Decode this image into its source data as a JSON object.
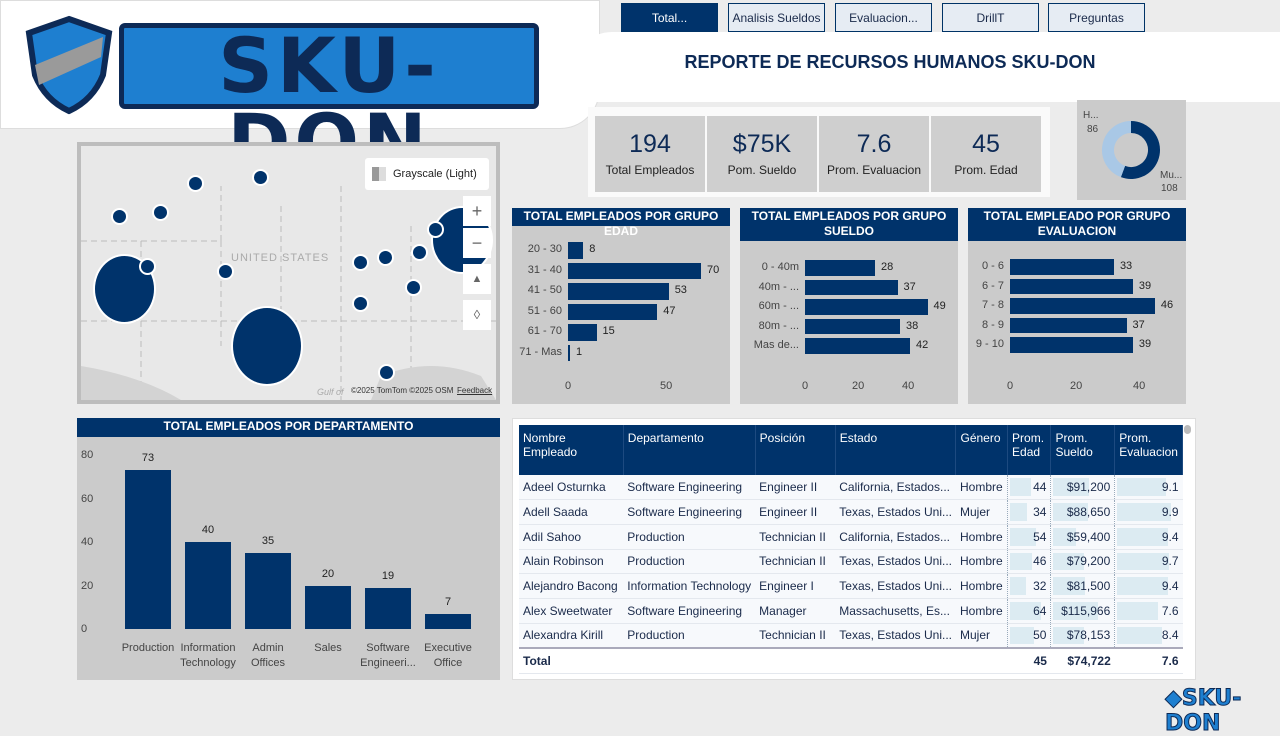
{
  "brand": {
    "logo_text": "SKU-DON",
    "colors": {
      "navy": "#00336b",
      "light": "#a9c8e6",
      "panel": "#cbcbcb"
    }
  },
  "tabs": [
    {
      "label": "Total...",
      "active": true
    },
    {
      "label": "Analisis Sueldos"
    },
    {
      "label": "Evaluacion..."
    },
    {
      "label": "DrillT"
    },
    {
      "label": "Preguntas"
    }
  ],
  "title": "REPORTE DE RECURSOS HUMANOS SKU-DON",
  "kpis": [
    {
      "value": "194",
      "label": "Total Empleados"
    },
    {
      "value": "$75K",
      "label": "Pom. Sueldo"
    },
    {
      "value": "7.6",
      "label": "Prom. Evaluacion"
    },
    {
      "value": "45",
      "label": "Prom. Edad"
    }
  ],
  "map": {
    "style_label": "Grayscale (Light)",
    "country_label": "UNITED STATES",
    "gulf_label": "Gulf of",
    "attribution": "©2025 TomTom  ©2025 OSM",
    "feedback": "Feedback",
    "icons": [
      "map-style-icon",
      "zoom-in-icon",
      "zoom-out-icon",
      "tilt-icon",
      "compass-icon"
    ]
  },
  "chart_data": [
    {
      "type": "pie",
      "variant": "donut",
      "categories": [
        "H...",
        "Mu..."
      ],
      "values": [
        86,
        108
      ],
      "colors": [
        "#a9c8e6",
        "#00336b"
      ]
    },
    {
      "type": "bar",
      "orientation": "horizontal",
      "title": "TOTAL EMPLEADOS POR GRUPO EDAD",
      "categories": [
        "20 - 30",
        "31 - 40",
        "41 - 50",
        "51 - 60",
        "61 - 70",
        "71 - Mas"
      ],
      "values": [
        8,
        70,
        53,
        47,
        15,
        1
      ],
      "xticks": [
        "0",
        "50"
      ],
      "xlim": [
        0,
        70
      ]
    },
    {
      "type": "bar",
      "orientation": "horizontal",
      "title": "TOTAL EMPLEADOS POR GRUPO SUELDO",
      "categories": [
        "0 - 40m",
        "40m - ...",
        "60m - ...",
        "80m - ...",
        "Mas de..."
      ],
      "values": [
        28,
        37,
        49,
        38,
        42
      ],
      "xticks": [
        "0",
        "20",
        "40"
      ],
      "xlim": [
        0,
        49
      ]
    },
    {
      "type": "bar",
      "orientation": "horizontal",
      "title": "TOTAL EMPLEADO POR GRUPO EVALUACION",
      "categories": [
        "0 - 6",
        "6 - 7",
        "7 - 8",
        "8 - 9",
        "9 - 10"
      ],
      "values": [
        33,
        39,
        46,
        37,
        39
      ],
      "xticks": [
        "0",
        "20",
        "40"
      ],
      "xlim": [
        0,
        46
      ]
    },
    {
      "type": "bar",
      "orientation": "vertical",
      "title": "TOTAL EMPLEADOS POR DEPARTAMENTO",
      "categories": [
        "Production",
        "Information Technology",
        "Admin Offices",
        "Sales",
        "Software Engineeri...",
        "Executive Office"
      ],
      "values": [
        73,
        40,
        35,
        20,
        19,
        7
      ],
      "yticks": [
        "0",
        "20",
        "40",
        "60",
        "80"
      ],
      "ylim": [
        0,
        80
      ]
    }
  ],
  "table": {
    "columns": [
      "Nombre Empleado",
      "Departamento",
      "Posición",
      "Estado",
      "Género",
      "Prom. Edad",
      "Prom. Sueldo",
      "Prom. Evaluacion"
    ],
    "rows": [
      [
        "Adeel Osturnka",
        "Software Engineering",
        "Engineer II",
        "California, Estados...",
        "Hombre",
        "44",
        "$91,200",
        "9.1"
      ],
      [
        "Adell Saada",
        "Software Engineering",
        "Engineer II",
        "Texas, Estados Uni...",
        "Mujer",
        "34",
        "$88,650",
        "9.9"
      ],
      [
        "Adil Sahoo",
        "Production",
        "Technician II",
        "California, Estados...",
        "Hombre",
        "54",
        "$59,400",
        "9.4"
      ],
      [
        "Alain Robinson",
        "Production",
        "Technician II",
        "Texas, Estados Uni...",
        "Hombre",
        "46",
        "$79,200",
        "9.7"
      ],
      [
        "Alejandro Bacong",
        "Information Technology",
        "Engineer I",
        "Texas, Estados Uni...",
        "Hombre",
        "32",
        "$81,500",
        "9.4"
      ],
      [
        "Alex Sweetwater",
        "Software Engineering",
        "Manager",
        "Massachusetts, Es...",
        "Hombre",
        "64",
        "$115,966",
        "7.6"
      ],
      [
        "Alexandra Kirill",
        "Production",
        "Technician II",
        "Texas, Estados Uni...",
        "Mujer",
        "50",
        "$78,153",
        "8.4"
      ]
    ],
    "total": {
      "label": "Total",
      "edad": "45",
      "sueldo": "$74,722",
      "evaluacion": "7.6"
    }
  }
}
